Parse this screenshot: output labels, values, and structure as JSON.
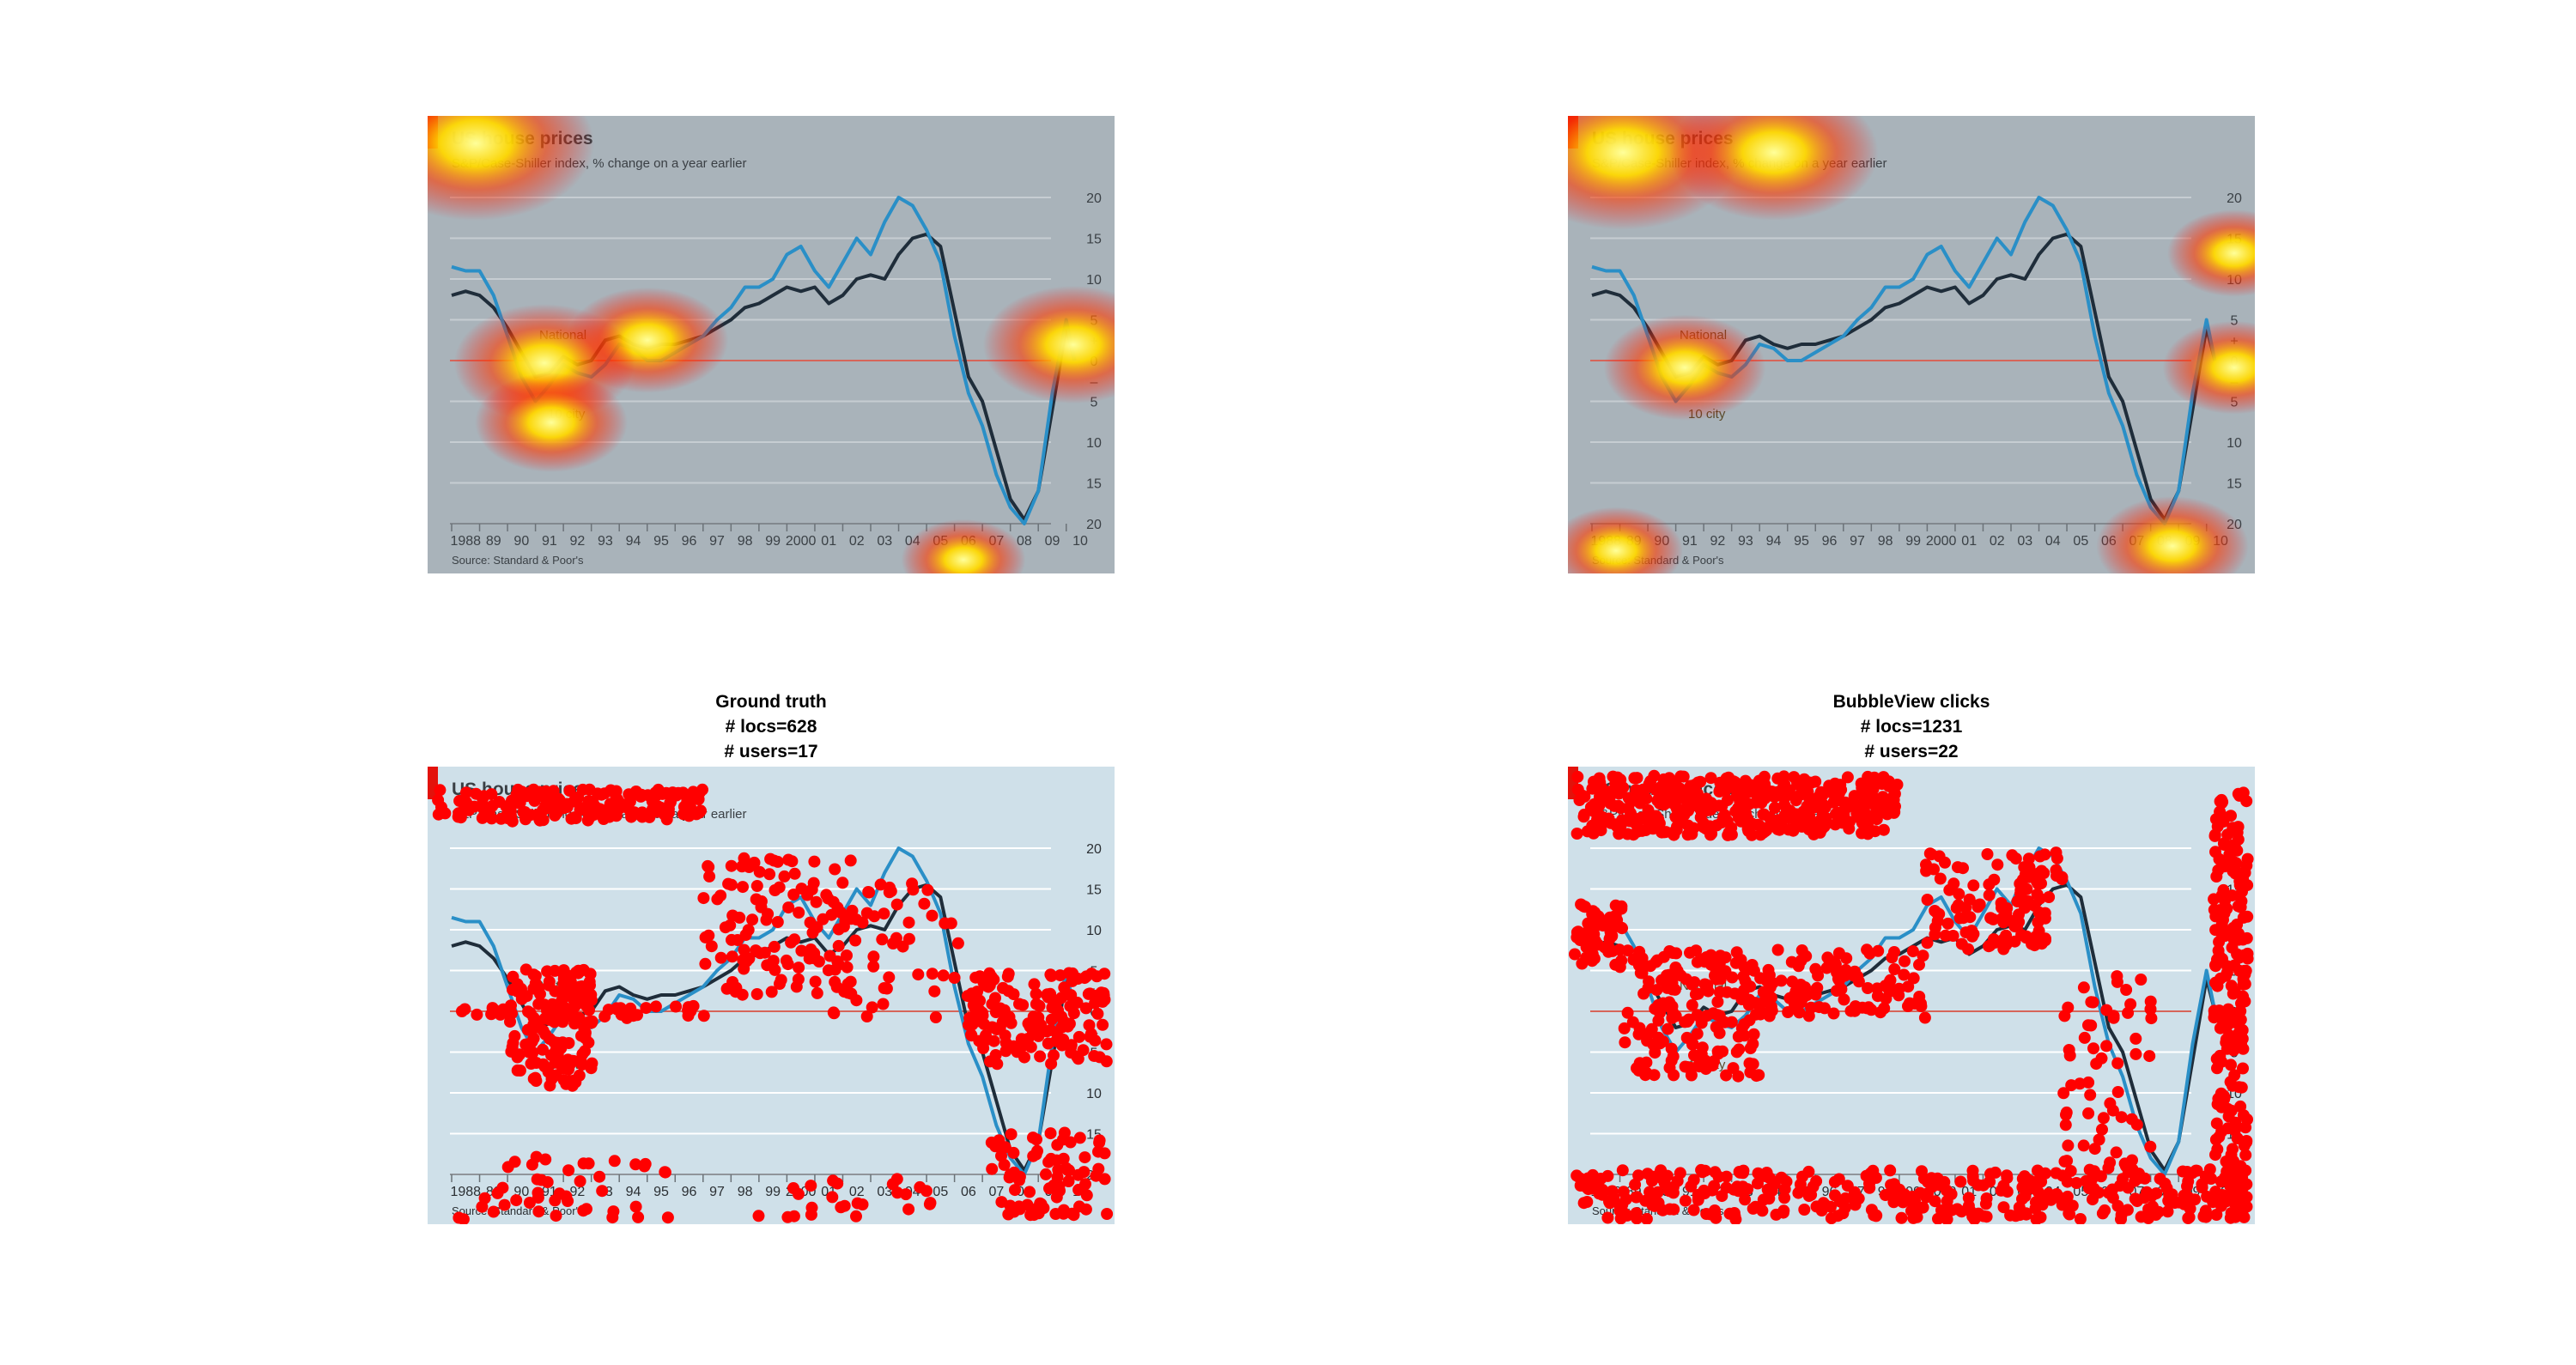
{
  "panels": [
    {
      "title_lines": [],
      "mode": "heatmap",
      "variant": "a"
    },
    {
      "title_lines": [],
      "mode": "heatmap",
      "variant": "b"
    },
    {
      "title_lines": [
        "Ground truth",
        "# locs=628",
        "# users=17"
      ],
      "mode": "clicks",
      "variant": "a"
    },
    {
      "title_lines": [
        "BubbleView clicks",
        "# locs=1231",
        "# users=22"
      ],
      "mode": "clicks",
      "variant": "b"
    }
  ],
  "chart_data": {
    "type": "line",
    "title": "US house prices",
    "subtitle": "S&P/Case-Shiller index, % change on a year earlier",
    "source": "Source: Standard & Poor's",
    "x_labels": [
      "1988",
      "89",
      "90",
      "91",
      "92",
      "93",
      "94",
      "95",
      "96",
      "97",
      "98",
      "99",
      "2000",
      "01",
      "02",
      "03",
      "04",
      "05",
      "06",
      "07",
      "08",
      "09",
      "10"
    ],
    "y_ticks": [
      "20",
      "15",
      "10",
      "5",
      "+",
      "0",
      "–",
      "5",
      "10",
      "15",
      "20"
    ],
    "ylim": [
      -20,
      20
    ],
    "series": [
      {
        "name": "National",
        "color": "#1f2d3a",
        "x": [
          1988.0,
          1988.5,
          1989.0,
          1989.5,
          1990.0,
          1990.5,
          1991.0,
          1991.5,
          1992.0,
          1992.5,
          1993.0,
          1993.5,
          1994.0,
          1994.5,
          1995.0,
          1995.5,
          1996.0,
          1996.5,
          1997.0,
          1997.5,
          1998.0,
          1998.5,
          1999.0,
          1999.5,
          2000.0,
          2000.5,
          2001.0,
          2001.5,
          2002.0,
          2002.5,
          2003.0,
          2003.5,
          2004.0,
          2004.5,
          2005.0,
          2005.5,
          2006.0,
          2006.5,
          2007.0,
          2007.5,
          2008.0,
          2008.5,
          2009.0,
          2009.5,
          2010.0,
          2010.3
        ],
        "y": [
          8,
          8.5,
          8,
          6.5,
          4,
          1,
          -2,
          -1.5,
          0.5,
          -0.5,
          0,
          2.5,
          3,
          2,
          1.5,
          2,
          2,
          2.5,
          3,
          4,
          5,
          6.5,
          7,
          8,
          9,
          8.5,
          9,
          7,
          8,
          10,
          10.5,
          10,
          13,
          15,
          15.5,
          14,
          6,
          -2,
          -5,
          -11,
          -17,
          -19.5,
          -16,
          -6,
          4,
          0
        ]
      },
      {
        "name": "10 city",
        "color": "#2a8fc7",
        "x": [
          1988.0,
          1988.5,
          1989.0,
          1989.5,
          1990.0,
          1990.5,
          1991.0,
          1991.5,
          1992.0,
          1992.5,
          1993.0,
          1993.5,
          1994.0,
          1994.5,
          1995.0,
          1995.5,
          1996.0,
          1996.5,
          1997.0,
          1997.5,
          1998.0,
          1998.5,
          1999.0,
          1999.5,
          2000.0,
          2000.5,
          2001.0,
          2001.5,
          2002.0,
          2002.5,
          2003.0,
          2003.5,
          2004.0,
          2004.5,
          2005.0,
          2005.5,
          2006.0,
          2006.5,
          2007.0,
          2007.5,
          2008.0,
          2008.5,
          2009.0,
          2009.5,
          2010.0,
          2010.3
        ],
        "y": [
          11.5,
          11,
          11,
          8,
          3,
          -2,
          -5,
          -3,
          -0.5,
          -1.5,
          -2,
          -0.5,
          2,
          1.5,
          0,
          0,
          1,
          2,
          3,
          5,
          6.5,
          9,
          9,
          10,
          13,
          14,
          11,
          9,
          12,
          15,
          13,
          17,
          20,
          19,
          16,
          12,
          3,
          -4,
          -8,
          -14,
          -18,
          -20,
          -16,
          -4,
          5,
          0
        ]
      }
    ],
    "annotations": [
      "National",
      "10 city"
    ],
    "heatmap_a": [
      [
        0.07,
        0.06,
        1.0
      ],
      [
        0.32,
        0.49,
        0.6
      ],
      [
        0.17,
        0.54,
        0.7
      ],
      [
        0.18,
        0.67,
        0.55
      ],
      [
        0.94,
        0.5,
        0.7
      ],
      [
        0.78,
        0.97,
        0.4
      ]
    ],
    "heatmap_b": [
      [
        0.08,
        0.08,
        1.0
      ],
      [
        0.3,
        0.08,
        0.85
      ],
      [
        0.17,
        0.55,
        0.6
      ],
      [
        0.97,
        0.3,
        0.45
      ],
      [
        0.97,
        0.55,
        0.5
      ],
      [
        0.88,
        0.94,
        0.55
      ],
      [
        0.07,
        0.95,
        0.45
      ]
    ]
  }
}
